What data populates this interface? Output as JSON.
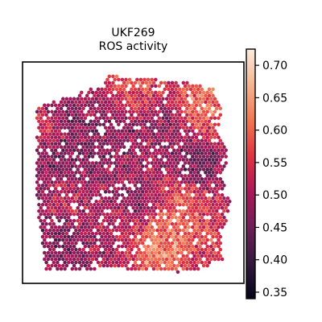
{
  "chart_data": {
    "type": "scatter",
    "title": "UKF269\nROS activity",
    "title_lines": [
      "UKF269",
      "ROS activity"
    ],
    "xlabel": "",
    "ylabel": "",
    "colorbar": {
      "label": "",
      "range": [
        0.34,
        0.725
      ],
      "ticks": [
        0.35,
        0.4,
        0.45,
        0.5,
        0.55,
        0.6,
        0.65,
        0.7
      ],
      "tick_labels": [
        "0.35",
        "0.40",
        "0.45",
        "0.50",
        "0.55",
        "0.60",
        "0.65",
        "0.70"
      ],
      "colormap": "rocket",
      "colormap_stops": [
        "#03051a",
        "#35193e",
        "#701f57",
        "#ad1759",
        "#e13342",
        "#f37651",
        "#f6b48f",
        "#faebdd"
      ]
    },
    "grid": false,
    "legend": "none",
    "marker": "hexagonal spatial spots",
    "tissue_outline": [
      [
        0.06,
        0.21
      ],
      [
        0.12,
        0.18
      ],
      [
        0.2,
        0.16
      ],
      [
        0.28,
        0.13
      ],
      [
        0.36,
        0.11
      ],
      [
        0.39,
        0.05
      ],
      [
        0.44,
        0.07
      ],
      [
        0.52,
        0.07
      ],
      [
        0.62,
        0.08
      ],
      [
        0.74,
        0.09
      ],
      [
        0.86,
        0.12
      ],
      [
        0.9,
        0.22
      ],
      [
        0.88,
        0.32
      ],
      [
        0.93,
        0.42
      ],
      [
        0.9,
        0.52
      ],
      [
        0.94,
        0.62
      ],
      [
        0.92,
        0.72
      ],
      [
        0.89,
        0.8
      ],
      [
        0.91,
        0.89
      ],
      [
        0.82,
        0.93
      ],
      [
        0.7,
        0.95
      ],
      [
        0.55,
        0.94
      ],
      [
        0.4,
        0.93
      ],
      [
        0.25,
        0.94
      ],
      [
        0.1,
        0.94
      ],
      [
        0.09,
        0.82
      ],
      [
        0.07,
        0.68
      ],
      [
        0.06,
        0.52
      ],
      [
        0.06,
        0.36
      ]
    ],
    "mean_level_regions": [
      {
        "center": [
          0.22,
          0.4
        ],
        "radius": 0.2,
        "level": 0.43
      },
      {
        "center": [
          0.16,
          0.8
        ],
        "radius": 0.14,
        "level": 0.44
      },
      {
        "center": [
          0.33,
          0.7
        ],
        "radius": 0.12,
        "level": 0.49
      },
      {
        "center": [
          0.42,
          0.3
        ],
        "radius": 0.12,
        "level": 0.47
      },
      {
        "center": [
          0.63,
          0.3
        ],
        "radius": 0.1,
        "level": 0.46
      },
      {
        "center": [
          0.78,
          0.47
        ],
        "radius": 0.09,
        "level": 0.4
      },
      {
        "center": [
          0.57,
          0.62
        ],
        "radius": 0.09,
        "level": 0.41
      },
      {
        "center": [
          0.82,
          0.2
        ],
        "radius": 0.1,
        "level": 0.64
      },
      {
        "center": [
          0.5,
          0.12
        ],
        "radius": 0.1,
        "level": 0.61
      },
      {
        "center": [
          0.68,
          0.66
        ],
        "radius": 0.12,
        "level": 0.64
      },
      {
        "center": [
          0.62,
          0.85
        ],
        "radius": 0.1,
        "level": 0.66
      },
      {
        "center": [
          0.2,
          0.62
        ],
        "radius": 0.09,
        "level": 0.57
      },
      {
        "center": [
          0.86,
          0.78
        ],
        "radius": 0.08,
        "level": 0.58
      },
      {
        "center": [
          0.1,
          0.3
        ],
        "radius": 0.07,
        "level": 0.6
      }
    ],
    "baseline_level": 0.52,
    "spot_density": 0.88
  }
}
